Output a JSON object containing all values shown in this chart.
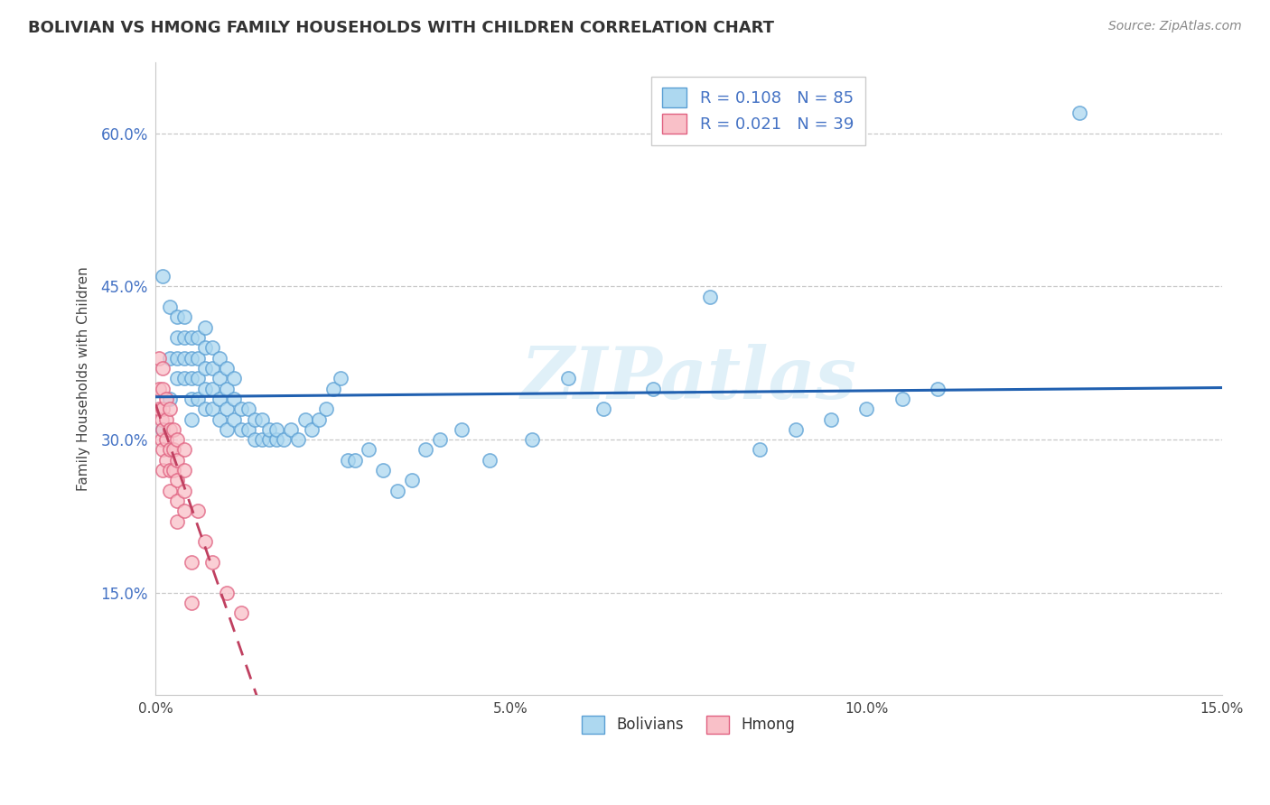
{
  "title": "BOLIVIAN VS HMONG FAMILY HOUSEHOLDS WITH CHILDREN CORRELATION CHART",
  "source": "Source: ZipAtlas.com",
  "ylabel": "Family Households with Children",
  "xmin": 0.0,
  "xmax": 0.15,
  "ymin": 0.05,
  "ymax": 0.67,
  "yticks": [
    0.15,
    0.3,
    0.45,
    0.6
  ],
  "xticks": [
    0.0,
    0.05,
    0.1,
    0.15
  ],
  "xtick_labels": [
    "0.0%",
    "5.0%",
    "10.0%",
    "15.0%"
  ],
  "ytick_labels": [
    "15.0%",
    "30.0%",
    "45.0%",
    "60.0%"
  ],
  "grid_color": "#c8c8c8",
  "background_color": "#ffffff",
  "bolivians_face_color": "#add8f0",
  "bolivians_edge_color": "#5a9fd4",
  "hmong_face_color": "#f9c0c8",
  "hmong_edge_color": "#e06080",
  "bolivians_line_color": "#2060b0",
  "hmong_line_color": "#c04060",
  "R_bolivians": 0.108,
  "N_bolivians": 85,
  "R_hmong": 0.021,
  "N_hmong": 39,
  "legend_label_bolivians": "Bolivians",
  "legend_label_hmong": "Hmong",
  "watermark": "ZIPatlas",
  "bolivians_x": [
    0.001,
    0.001,
    0.002,
    0.002,
    0.002,
    0.003,
    0.003,
    0.003,
    0.003,
    0.004,
    0.004,
    0.004,
    0.004,
    0.005,
    0.005,
    0.005,
    0.005,
    0.005,
    0.006,
    0.006,
    0.006,
    0.006,
    0.007,
    0.007,
    0.007,
    0.007,
    0.007,
    0.008,
    0.008,
    0.008,
    0.008,
    0.009,
    0.009,
    0.009,
    0.009,
    0.01,
    0.01,
    0.01,
    0.01,
    0.011,
    0.011,
    0.011,
    0.012,
    0.012,
    0.013,
    0.013,
    0.014,
    0.014,
    0.015,
    0.015,
    0.016,
    0.016,
    0.017,
    0.017,
    0.018,
    0.019,
    0.02,
    0.021,
    0.022,
    0.023,
    0.024,
    0.025,
    0.026,
    0.027,
    0.028,
    0.03,
    0.032,
    0.034,
    0.036,
    0.038,
    0.04,
    0.043,
    0.047,
    0.053,
    0.058,
    0.063,
    0.07,
    0.078,
    0.085,
    0.09,
    0.095,
    0.1,
    0.105,
    0.11,
    0.13
  ],
  "bolivians_y": [
    0.31,
    0.46,
    0.34,
    0.38,
    0.43,
    0.36,
    0.38,
    0.4,
    0.42,
    0.36,
    0.38,
    0.4,
    0.42,
    0.32,
    0.34,
    0.36,
    0.38,
    0.4,
    0.34,
    0.36,
    0.38,
    0.4,
    0.33,
    0.35,
    0.37,
    0.39,
    0.41,
    0.33,
    0.35,
    0.37,
    0.39,
    0.32,
    0.34,
    0.36,
    0.38,
    0.31,
    0.33,
    0.35,
    0.37,
    0.32,
    0.34,
    0.36,
    0.31,
    0.33,
    0.31,
    0.33,
    0.3,
    0.32,
    0.3,
    0.32,
    0.3,
    0.31,
    0.3,
    0.31,
    0.3,
    0.31,
    0.3,
    0.32,
    0.31,
    0.32,
    0.33,
    0.35,
    0.36,
    0.28,
    0.28,
    0.29,
    0.27,
    0.25,
    0.26,
    0.29,
    0.3,
    0.31,
    0.28,
    0.3,
    0.36,
    0.33,
    0.35,
    0.44,
    0.29,
    0.31,
    0.32,
    0.33,
    0.34,
    0.35,
    0.62
  ],
  "hmong_x": [
    0.0005,
    0.0005,
    0.0005,
    0.0008,
    0.0008,
    0.001,
    0.001,
    0.001,
    0.001,
    0.001,
    0.001,
    0.0015,
    0.0015,
    0.0015,
    0.0015,
    0.002,
    0.002,
    0.002,
    0.002,
    0.002,
    0.0025,
    0.0025,
    0.0025,
    0.003,
    0.003,
    0.003,
    0.003,
    0.003,
    0.004,
    0.004,
    0.004,
    0.004,
    0.005,
    0.005,
    0.006,
    0.007,
    0.008,
    0.01,
    0.012
  ],
  "hmong_y": [
    0.38,
    0.35,
    0.33,
    0.3,
    0.32,
    0.37,
    0.35,
    0.33,
    0.31,
    0.29,
    0.27,
    0.34,
    0.32,
    0.3,
    0.28,
    0.33,
    0.31,
    0.29,
    0.27,
    0.25,
    0.31,
    0.29,
    0.27,
    0.3,
    0.28,
    0.26,
    0.24,
    0.22,
    0.29,
    0.27,
    0.25,
    0.23,
    0.18,
    0.14,
    0.23,
    0.2,
    0.18,
    0.15,
    0.13
  ]
}
